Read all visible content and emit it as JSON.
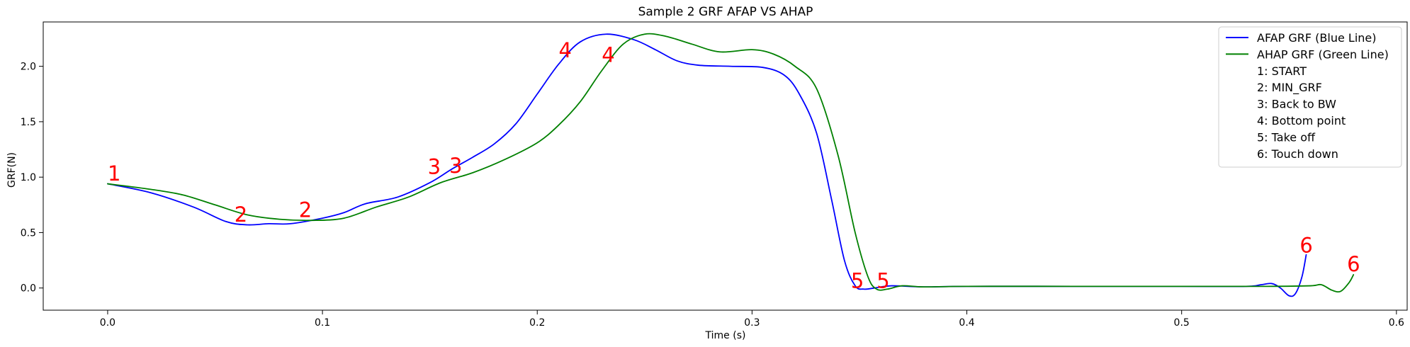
{
  "chart_data": {
    "type": "line",
    "title": "Sample 2 GRF AFAP VS AHAP",
    "xlabel": "Time (s)",
    "ylabel": "GRF(N)",
    "xlim": [
      -0.03,
      0.605
    ],
    "ylim": [
      -0.2,
      2.4
    ],
    "xticks": [
      0.0,
      0.1,
      0.2,
      0.3,
      0.4,
      0.5,
      0.6
    ],
    "xtick_labels": [
      "0.0",
      "0.1",
      "0.2",
      "0.3",
      "0.4",
      "0.5",
      "0.6"
    ],
    "yticks": [
      0.0,
      0.5,
      1.0,
      1.5,
      2.0
    ],
    "ytick_labels": [
      "0.0",
      "0.5",
      "1.0",
      "1.5",
      "2.0"
    ],
    "grid": false,
    "legend_position": "top-right",
    "legend": [
      {
        "label": "AFAP GRF (Blue Line)",
        "color": "#0000ff",
        "line": true
      },
      {
        "label": "AHAP GRF (Green Line)",
        "color": "#008000",
        "line": true
      },
      {
        "label": "1: START",
        "line": false
      },
      {
        "label": "2: MIN_GRF",
        "line": false
      },
      {
        "label": "3: Back to BW",
        "line": false
      },
      {
        "label": "4: Bottom point",
        "line": false
      },
      {
        "label": "5: Take off",
        "line": false
      },
      {
        "label": "6: Touch down",
        "line": false
      }
    ],
    "series": [
      {
        "name": "AFAP GRF (Blue Line)",
        "color": "#0000ff",
        "points": [
          [
            0.0,
            0.94
          ],
          [
            0.02,
            0.86
          ],
          [
            0.04,
            0.73
          ],
          [
            0.055,
            0.6
          ],
          [
            0.065,
            0.57
          ],
          [
            0.075,
            0.58
          ],
          [
            0.085,
            0.58
          ],
          [
            0.1,
            0.63
          ],
          [
            0.11,
            0.68
          ],
          [
            0.12,
            0.76
          ],
          [
            0.135,
            0.82
          ],
          [
            0.15,
            0.95
          ],
          [
            0.16,
            1.07
          ],
          [
            0.17,
            1.18
          ],
          [
            0.18,
            1.3
          ],
          [
            0.19,
            1.48
          ],
          [
            0.2,
            1.75
          ],
          [
            0.21,
            2.02
          ],
          [
            0.22,
            2.22
          ],
          [
            0.232,
            2.29
          ],
          [
            0.245,
            2.24
          ],
          [
            0.255,
            2.15
          ],
          [
            0.265,
            2.05
          ],
          [
            0.275,
            2.01
          ],
          [
            0.29,
            2.0
          ],
          [
            0.305,
            1.99
          ],
          [
            0.315,
            1.92
          ],
          [
            0.322,
            1.75
          ],
          [
            0.33,
            1.4
          ],
          [
            0.337,
            0.8
          ],
          [
            0.343,
            0.25
          ],
          [
            0.348,
            0.02
          ],
          [
            0.352,
            -0.01
          ],
          [
            0.357,
            0.0
          ],
          [
            0.365,
            0.02
          ],
          [
            0.38,
            0.01
          ],
          [
            0.4,
            0.015
          ],
          [
            0.45,
            0.015
          ],
          [
            0.5,
            0.015
          ],
          [
            0.53,
            0.015
          ],
          [
            0.537,
            0.03
          ],
          [
            0.542,
            0.04
          ],
          [
            0.546,
            0.0
          ],
          [
            0.55,
            -0.07
          ],
          [
            0.553,
            -0.05
          ],
          [
            0.556,
            0.1
          ],
          [
            0.558,
            0.3
          ]
        ]
      },
      {
        "name": "AHAP GRF (Green Line)",
        "color": "#008000",
        "points": [
          [
            0.0,
            0.94
          ],
          [
            0.02,
            0.89
          ],
          [
            0.035,
            0.84
          ],
          [
            0.05,
            0.75
          ],
          [
            0.065,
            0.66
          ],
          [
            0.08,
            0.62
          ],
          [
            0.095,
            0.61
          ],
          [
            0.11,
            0.63
          ],
          [
            0.125,
            0.73
          ],
          [
            0.14,
            0.82
          ],
          [
            0.155,
            0.95
          ],
          [
            0.17,
            1.04
          ],
          [
            0.185,
            1.16
          ],
          [
            0.2,
            1.31
          ],
          [
            0.21,
            1.47
          ],
          [
            0.22,
            1.68
          ],
          [
            0.23,
            1.96
          ],
          [
            0.24,
            2.2
          ],
          [
            0.25,
            2.29
          ],
          [
            0.26,
            2.27
          ],
          [
            0.272,
            2.2
          ],
          [
            0.285,
            2.13
          ],
          [
            0.3,
            2.15
          ],
          [
            0.31,
            2.11
          ],
          [
            0.32,
            2.0
          ],
          [
            0.33,
            1.8
          ],
          [
            0.34,
            1.2
          ],
          [
            0.348,
            0.5
          ],
          [
            0.354,
            0.1
          ],
          [
            0.358,
            -0.01
          ],
          [
            0.363,
            -0.01
          ],
          [
            0.37,
            0.02
          ],
          [
            0.38,
            0.01
          ],
          [
            0.4,
            0.015
          ],
          [
            0.45,
            0.015
          ],
          [
            0.5,
            0.015
          ],
          [
            0.54,
            0.015
          ],
          [
            0.56,
            0.02
          ],
          [
            0.565,
            0.03
          ],
          [
            0.57,
            -0.02
          ],
          [
            0.574,
            -0.03
          ],
          [
            0.578,
            0.05
          ],
          [
            0.58,
            0.12
          ]
        ]
      }
    ],
    "annotations": [
      {
        "text": "1",
        "x": 0.0,
        "y": 0.97,
        "color": "#ff0000"
      },
      {
        "text": "2",
        "x": 0.059,
        "y": 0.6,
        "color": "#ff0000"
      },
      {
        "text": "2",
        "x": 0.089,
        "y": 0.64,
        "color": "#ff0000"
      },
      {
        "text": "3",
        "x": 0.149,
        "y": 1.03,
        "color": "#ff0000"
      },
      {
        "text": "3",
        "x": 0.159,
        "y": 1.04,
        "color": "#ff0000"
      },
      {
        "text": "4",
        "x": 0.21,
        "y": 2.08,
        "color": "#ff0000"
      },
      {
        "text": "4",
        "x": 0.23,
        "y": 2.04,
        "color": "#ff0000"
      },
      {
        "text": "5",
        "x": 0.346,
        "y": 0.0,
        "color": "#ff0000"
      },
      {
        "text": "5",
        "x": 0.358,
        "y": 0.0,
        "color": "#ff0000"
      },
      {
        "text": "6",
        "x": 0.555,
        "y": 0.32,
        "color": "#ff0000"
      },
      {
        "text": "6",
        "x": 0.577,
        "y": 0.15,
        "color": "#ff0000"
      }
    ]
  }
}
